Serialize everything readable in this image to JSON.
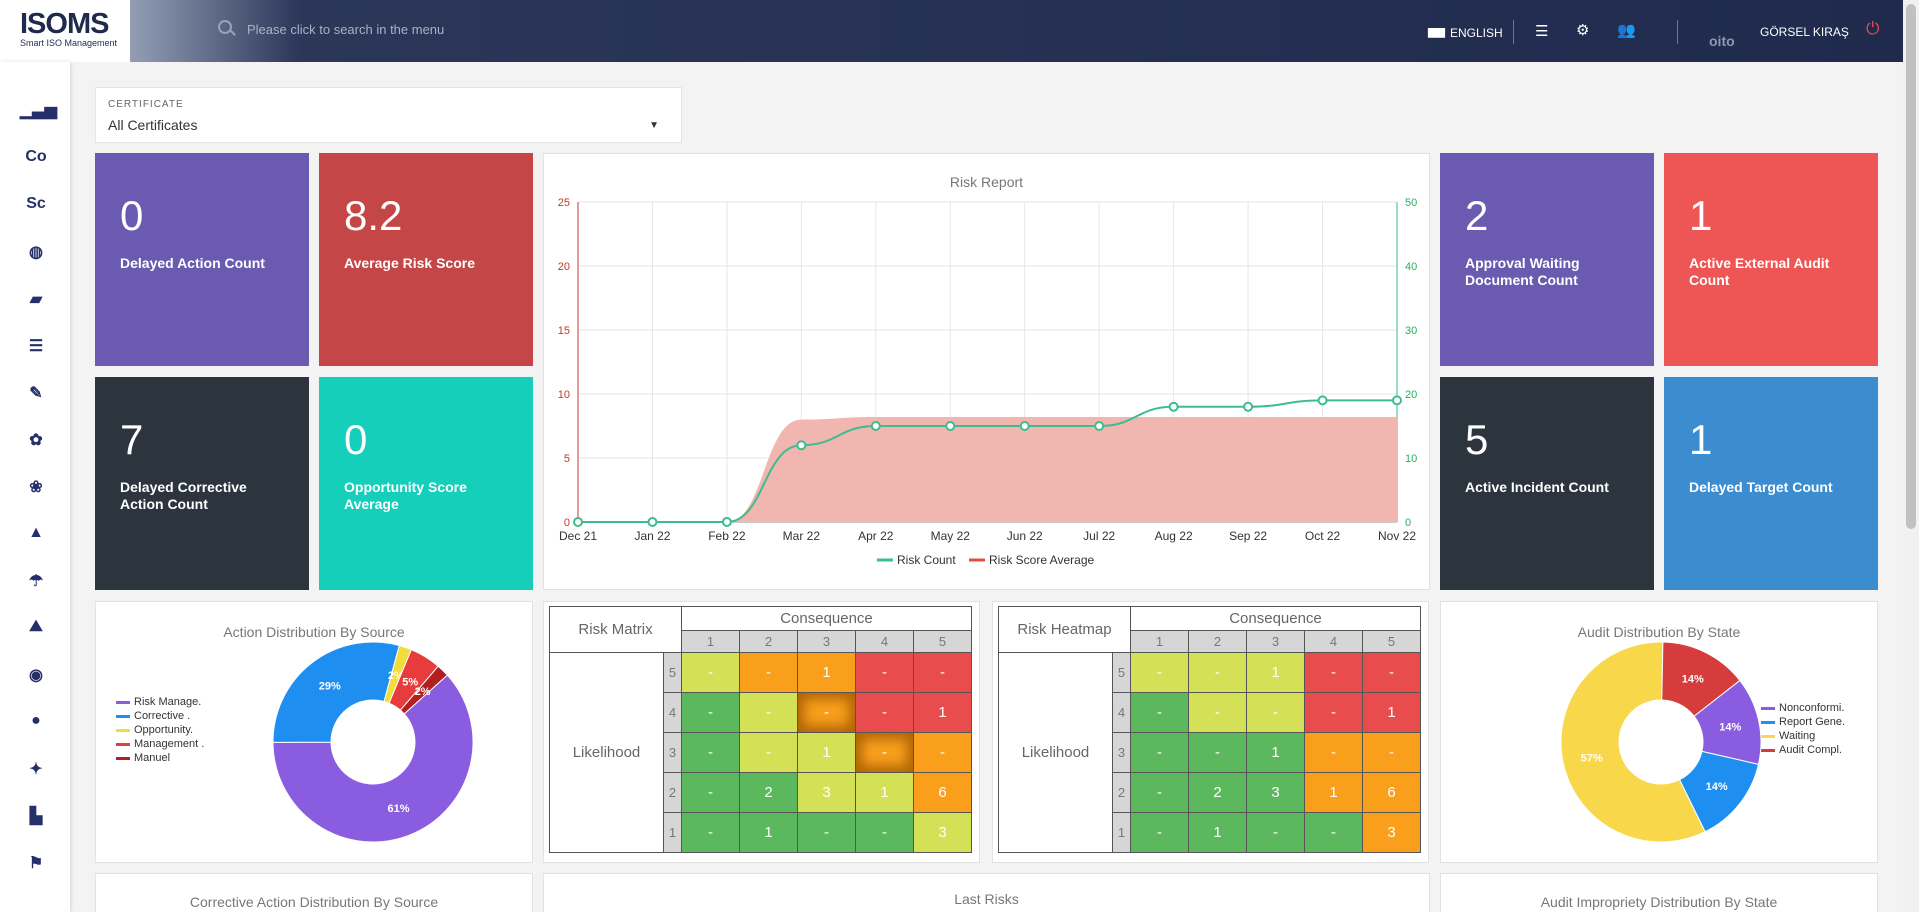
{
  "app": {
    "logo": "ISOMS",
    "tagline": "Smart ISO Management"
  },
  "header": {
    "search_placeholder": "Please click to search in the menu",
    "language": "ENGLISH",
    "company_logo": "oito",
    "user": "GÖRSEL KIRAŞ"
  },
  "sidebar": {
    "items": [
      {
        "icon": "bar-chart-icon",
        "text": ""
      },
      {
        "icon": "co-text",
        "text": "Co"
      },
      {
        "icon": "sc-text",
        "text": "Sc"
      },
      {
        "icon": "globe-icon",
        "text": ""
      },
      {
        "icon": "folder-icon",
        "text": ""
      },
      {
        "icon": "list-check-icon",
        "text": ""
      },
      {
        "icon": "wrench-icon",
        "text": ""
      },
      {
        "icon": "hands-helping-icon",
        "text": ""
      },
      {
        "icon": "hands-globe-icon",
        "text": ""
      },
      {
        "icon": "shapes-icon",
        "text": ""
      },
      {
        "icon": "umbrella-icon",
        "text": ""
      },
      {
        "icon": "mountain-icon",
        "text": ""
      },
      {
        "icon": "eye-icon",
        "text": ""
      },
      {
        "icon": "user-tie-icon",
        "text": ""
      },
      {
        "icon": "running-icon",
        "text": ""
      },
      {
        "icon": "podium-icon",
        "text": ""
      },
      {
        "icon": "flag-checkered-icon",
        "text": ""
      }
    ]
  },
  "certificate": {
    "label": "CERTIFICATE",
    "value": "All Certificates"
  },
  "tiles": [
    {
      "value": "0",
      "label": "Delayed Action Count",
      "color": "#6a5bb0"
    },
    {
      "value": "8.2",
      "label": "Average Risk Score",
      "color": "#c54646"
    },
    {
      "value": "7",
      "label": "Delayed Corrective Action Count",
      "color": "#2c353e"
    },
    {
      "value": "0",
      "label": "Opportunity Score Average",
      "color": "#15cfbb"
    },
    {
      "value": "2",
      "label": "Approval Waiting Document Count",
      "color": "#6a5bb0"
    },
    {
      "value": "1",
      "label": "Active External Audit Count",
      "color": "#ee5555"
    },
    {
      "value": "5",
      "label": "Active Incident Count",
      "color": "#2c353e"
    },
    {
      "value": "1",
      "label": "Delayed Target Count",
      "color": "#3b8dd0"
    }
  ],
  "chart_data": [
    {
      "type": "line",
      "title": "Risk Report",
      "categories": [
        "Dec 21",
        "Jan 22",
        "Feb 22",
        "Mar 22",
        "Apr 22",
        "May 22",
        "Jun 22",
        "Jul 22",
        "Aug 22",
        "Sep 22",
        "Oct 22",
        "Nov 22"
      ],
      "y_left_ticks": [
        "0",
        "5",
        "10",
        "15",
        "20",
        "25"
      ],
      "y_right_ticks": [
        "0",
        "10",
        "20",
        "30",
        "40",
        "50"
      ],
      "ylim_left": [
        0,
        25
      ],
      "ylim_right": [
        0,
        50
      ],
      "series": [
        {
          "name": "Risk Count",
          "type": "line",
          "axis": "right",
          "color": "#3dbd8e",
          "values": [
            0,
            0,
            0,
            12,
            15,
            15,
            15,
            15,
            18,
            18,
            19,
            19
          ]
        },
        {
          "name": "Risk Score Average",
          "type": "area",
          "axis": "left",
          "color": "#f1b6b0",
          "values": [
            0,
            0,
            0,
            8,
            8.2,
            8.2,
            8.2,
            8.2,
            8.2,
            8.2,
            8.2,
            8.2
          ]
        }
      ],
      "legend": "bottom"
    },
    {
      "type": "pie",
      "title": "Action Distribution By Source",
      "donut": true,
      "labels": [
        "Risk Manage.",
        "Corrective .",
        "Opportunity.",
        "Management .",
        "Manuel"
      ],
      "values": [
        61,
        29,
        2,
        5,
        2
      ],
      "slice_labels": [
        "61%",
        "29%",
        "2%",
        "5%",
        "2%"
      ],
      "colors": [
        "#8a5ce0",
        "#1e8ff0",
        "#f0dc3c",
        "#e83c3c",
        "#b21f1f"
      ],
      "legend": "left"
    },
    {
      "type": "pie",
      "title": "Audit Distribution By State",
      "donut": true,
      "labels": [
        "Nonconformi.",
        "Report Gene.",
        "Waiting",
        "Audit Compl."
      ],
      "values": [
        14,
        14,
        57,
        14
      ],
      "slice_labels": [
        "14%",
        "14%",
        "57%",
        "14%"
      ],
      "colors": [
        "#8a5ce0",
        "#1e8ff0",
        "#f8d84a",
        "#d63c3c"
      ],
      "legend": "right"
    }
  ],
  "risk_matrix": {
    "title": "Risk Matrix",
    "consequence_label": "Consequence",
    "likelihood_label": "Likelihood",
    "columns": [
      "1",
      "2",
      "3",
      "4",
      "5"
    ],
    "rows": [
      {
        "likelihood": "5",
        "cells": [
          {
            "v": "-",
            "c": "y"
          },
          {
            "v": "-",
            "c": "o"
          },
          {
            "v": "1",
            "c": "o"
          },
          {
            "v": "-",
            "c": "r"
          },
          {
            "v": "-",
            "c": "r"
          }
        ]
      },
      {
        "likelihood": "4",
        "cells": [
          {
            "v": "-",
            "c": "g"
          },
          {
            "v": "-",
            "c": "y"
          },
          {
            "v": "-",
            "c": "o",
            "glow": true
          },
          {
            "v": "-",
            "c": "r"
          },
          {
            "v": "1",
            "c": "r"
          }
        ]
      },
      {
        "likelihood": "3",
        "cells": [
          {
            "v": "-",
            "c": "g"
          },
          {
            "v": "-",
            "c": "y"
          },
          {
            "v": "1",
            "c": "y"
          },
          {
            "v": "-",
            "c": "o",
            "glow": true
          },
          {
            "v": "-",
            "c": "o"
          }
        ]
      },
      {
        "likelihood": "2",
        "cells": [
          {
            "v": "-",
            "c": "g"
          },
          {
            "v": "2",
            "c": "g"
          },
          {
            "v": "3",
            "c": "y"
          },
          {
            "v": "1",
            "c": "y"
          },
          {
            "v": "6",
            "c": "o"
          }
        ]
      },
      {
        "likelihood": "1",
        "cells": [
          {
            "v": "-",
            "c": "g"
          },
          {
            "v": "1",
            "c": "g"
          },
          {
            "v": "-",
            "c": "g"
          },
          {
            "v": "-",
            "c": "g"
          },
          {
            "v": "3",
            "c": "y"
          }
        ]
      }
    ]
  },
  "risk_heatmap": {
    "title": "Risk Heatmap",
    "consequence_label": "Consequence",
    "likelihood_label": "Likelihood",
    "columns": [
      "1",
      "2",
      "3",
      "4",
      "5"
    ],
    "rows": [
      {
        "likelihood": "5",
        "cells": [
          {
            "v": "-",
            "c": "y"
          },
          {
            "v": "-",
            "c": "y"
          },
          {
            "v": "1",
            "c": "y"
          },
          {
            "v": "-",
            "c": "r"
          },
          {
            "v": "-",
            "c": "r"
          }
        ]
      },
      {
        "likelihood": "4",
        "cells": [
          {
            "v": "-",
            "c": "g"
          },
          {
            "v": "-",
            "c": "y"
          },
          {
            "v": "-",
            "c": "y"
          },
          {
            "v": "-",
            "c": "r"
          },
          {
            "v": "1",
            "c": "r"
          }
        ]
      },
      {
        "likelihood": "3",
        "cells": [
          {
            "v": "-",
            "c": "g"
          },
          {
            "v": "-",
            "c": "g"
          },
          {
            "v": "1",
            "c": "g"
          },
          {
            "v": "-",
            "c": "o"
          },
          {
            "v": "-",
            "c": "o"
          }
        ]
      },
      {
        "likelihood": "2",
        "cells": [
          {
            "v": "-",
            "c": "g"
          },
          {
            "v": "2",
            "c": "g"
          },
          {
            "v": "3",
            "c": "g"
          },
          {
            "v": "1",
            "c": "o"
          },
          {
            "v": "6",
            "c": "o"
          }
        ]
      },
      {
        "likelihood": "1",
        "cells": [
          {
            "v": "-",
            "c": "g"
          },
          {
            "v": "1",
            "c": "g"
          },
          {
            "v": "-",
            "c": "g"
          },
          {
            "v": "-",
            "c": "g"
          },
          {
            "v": "3",
            "c": "o"
          }
        ]
      }
    ]
  },
  "bottom_panels": {
    "corrective": "Corrective Action Distribution By Source",
    "last_risks": "Last Risks",
    "audit_impropriety": "Audit Impropriety Distribution By State"
  }
}
